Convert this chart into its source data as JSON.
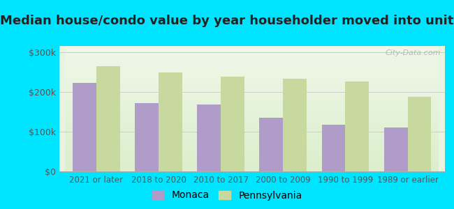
{
  "title": "Median house/condo value by year householder moved into unit",
  "categories": [
    "2021 or later",
    "2018 to 2020",
    "2010 to 2017",
    "2000 to 2009",
    "1990 to 1999",
    "1989 or earlier"
  ],
  "monaca_values": [
    222000,
    172000,
    168000,
    135000,
    118000,
    110000
  ],
  "pennsylvania_values": [
    265000,
    248000,
    238000,
    232000,
    225000,
    188000
  ],
  "monaca_color": "#b09cc8",
  "pennsylvania_color": "#c8d9a0",
  "background_color": "#00e5ff",
  "plot_bg_color": "#e8f3e0",
  "yticks": [
    0,
    100000,
    200000,
    300000
  ],
  "ytick_labels": [
    "$0",
    "$100k",
    "$200k",
    "$300k"
  ],
  "ylim": [
    0,
    315000
  ],
  "legend_monaca": "Monaca",
  "legend_pennsylvania": "Pennsylvania",
  "title_fontsize": 13,
  "bar_width": 0.38,
  "grid_color": "#cccccc",
  "tick_color": "#555555",
  "watermark": "City-Data.com"
}
